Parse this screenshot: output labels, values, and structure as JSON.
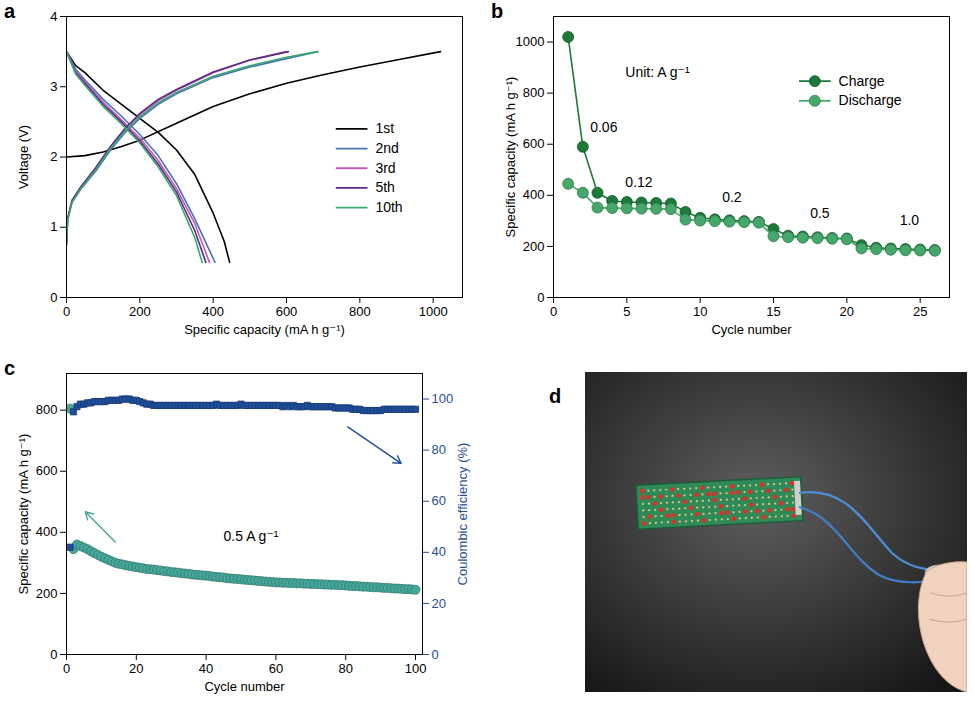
{
  "chart_data": [
    {
      "panel": "a",
      "type": "line",
      "xlabel": "Specific capacity (mA h g⁻¹)",
      "ylabel": "Voltage (V)",
      "xlim": [
        0,
        1080
      ],
      "xticks": [
        0,
        200,
        400,
        600,
        800,
        1000
      ],
      "ylim": [
        0,
        4
      ],
      "yticks": [
        0,
        1,
        2,
        3,
        4
      ],
      "legend": "lower right",
      "series": [
        {
          "name": "1st",
          "color": "#000000",
          "x": [
            0,
            25,
            50,
            100,
            150,
            200,
            250,
            300,
            350,
            400,
            430,
            445,
            null,
            0,
            50,
            100,
            150,
            200,
            300,
            400,
            500,
            600,
            700,
            800,
            900,
            1020
          ],
          "values": [
            3.5,
            3.3,
            3.2,
            2.95,
            2.75,
            2.55,
            2.35,
            2.1,
            1.75,
            1.2,
            0.8,
            0.5,
            null,
            2.0,
            2.02,
            2.07,
            2.15,
            2.24,
            2.48,
            2.72,
            2.9,
            3.05,
            3.17,
            3.28,
            3.38,
            3.5
          ]
        },
        {
          "name": "2nd",
          "color": "#4a72b8",
          "x": [
            0,
            25,
            50,
            100,
            150,
            200,
            250,
            300,
            350,
            405,
            null,
            0,
            3,
            15,
            40,
            80,
            120,
            160,
            200,
            250,
            300,
            400,
            500,
            600,
            685
          ],
          "values": [
            3.5,
            3.25,
            3.1,
            2.82,
            2.58,
            2.32,
            2.02,
            1.62,
            1.12,
            0.5,
            null,
            0.75,
            1.1,
            1.35,
            1.55,
            1.8,
            2.1,
            2.35,
            2.55,
            2.75,
            2.9,
            3.13,
            3.28,
            3.4,
            3.5
          ]
        },
        {
          "name": "3rd",
          "color": "#c25bb4",
          "x": [
            0,
            25,
            50,
            100,
            150,
            200,
            250,
            300,
            350,
            390,
            null,
            0,
            3,
            15,
            40,
            80,
            120,
            160,
            200,
            250,
            300,
            400,
            500,
            600
          ],
          "values": [
            3.5,
            3.22,
            3.07,
            2.78,
            2.53,
            2.27,
            1.95,
            1.55,
            1.05,
            0.5,
            null,
            0.75,
            1.12,
            1.38,
            1.58,
            1.84,
            2.14,
            2.4,
            2.6,
            2.8,
            2.95,
            3.2,
            3.38,
            3.5
          ]
        },
        {
          "name": "5th",
          "color": "#5b2a86",
          "x": [
            0,
            25,
            50,
            100,
            150,
            200,
            250,
            300,
            350,
            380,
            null,
            0,
            3,
            15,
            40,
            80,
            120,
            160,
            200,
            250,
            300,
            400,
            500,
            605
          ],
          "values": [
            3.5,
            3.2,
            3.05,
            2.75,
            2.5,
            2.23,
            1.9,
            1.5,
            0.95,
            0.5,
            null,
            0.75,
            1.12,
            1.38,
            1.58,
            1.85,
            2.15,
            2.41,
            2.62,
            2.82,
            2.96,
            3.21,
            3.38,
            3.5
          ]
        },
        {
          "name": "10th",
          "color": "#3aa86b",
          "x": [
            0,
            25,
            50,
            100,
            150,
            200,
            250,
            300,
            350,
            370,
            null,
            0,
            3,
            15,
            40,
            80,
            120,
            160,
            200,
            250,
            300,
            400,
            500,
            600,
            685
          ],
          "values": [
            3.5,
            3.18,
            3.02,
            2.72,
            2.47,
            2.2,
            1.86,
            1.45,
            0.85,
            0.5,
            null,
            0.75,
            1.1,
            1.36,
            1.56,
            1.82,
            2.12,
            2.37,
            2.57,
            2.77,
            2.92,
            3.15,
            3.3,
            3.42,
            3.5
          ]
        }
      ]
    },
    {
      "panel": "b",
      "type": "line",
      "xlabel": "Cycle number",
      "ylabel": "Specific capacity (mA h g⁻¹)",
      "xlim": [
        0,
        27
      ],
      "xticks": [
        0,
        5,
        10,
        15,
        20,
        25
      ],
      "ylim": [
        0,
        1100
      ],
      "yticks": [
        0,
        200,
        400,
        600,
        800,
        1000
      ],
      "legend": "upper right",
      "x": [
        1,
        2,
        3,
        4,
        5,
        6,
        7,
        8,
        9,
        10,
        11,
        12,
        13,
        14,
        15,
        16,
        17,
        18,
        19,
        20,
        21,
        22,
        23,
        24,
        25,
        26
      ],
      "series": [
        {
          "name": "Charge",
          "color": "#1b7a3a",
          "marker": "circle",
          "line_style": "solid",
          "values": [
            1020,
            590,
            410,
            378,
            374,
            372,
            370,
            368,
            335,
            312,
            306,
            302,
            299,
            296,
            268,
            242,
            239,
            236,
            233,
            231,
            205,
            195,
            192,
            190,
            188,
            186
          ]
        },
        {
          "name": "Discharge",
          "color": "#45a86a",
          "marker": "circle",
          "line_style": "solid",
          "values": [
            445,
            410,
            352,
            350,
            349,
            348,
            347,
            346,
            305,
            301,
            299,
            297,
            295,
            293,
            240,
            236,
            234,
            232,
            230,
            228,
            192,
            189,
            187,
            185,
            184,
            183
          ]
        }
      ],
      "annotations": [
        {
          "text": "Unit: A g⁻¹",
          "x": 4.9,
          "y": 880
        },
        {
          "text": "0.06",
          "x": 2.5,
          "y": 665
        },
        {
          "text": "0.12",
          "x": 4.9,
          "y": 450
        },
        {
          "text": "0.2",
          "x": 11.5,
          "y": 390
        },
        {
          "text": "0.5",
          "x": 17.5,
          "y": 330
        },
        {
          "text": "1.0",
          "x": 23.6,
          "y": 300
        }
      ]
    },
    {
      "panel": "c",
      "type": "scatter",
      "xlabel": "Cycle number",
      "ylabel": "Specific capacity (mA h g⁻¹)",
      "y2label": "Coulombic efficiency (%)",
      "xlim": [
        0,
        102
      ],
      "xticks": [
        0,
        20,
        40,
        60,
        80,
        100
      ],
      "ylim": [
        0,
        920
      ],
      "yticks": [
        0,
        200,
        400,
        600,
        800
      ],
      "y2lim": [
        0,
        110
      ],
      "y2ticks": [
        0,
        20,
        40,
        60,
        80,
        100
      ],
      "x": [
        1,
        2,
        3,
        4,
        5,
        6,
        7,
        8,
        9,
        10,
        11,
        12,
        13,
        14,
        15,
        16,
        17,
        18,
        19,
        20,
        21,
        22,
        23,
        24,
        25,
        26,
        27,
        28,
        29,
        30,
        31,
        32,
        33,
        34,
        35,
        36,
        37,
        38,
        39,
        40,
        41,
        42,
        43,
        44,
        45,
        46,
        47,
        48,
        49,
        50,
        51,
        52,
        53,
        54,
        55,
        56,
        57,
        58,
        59,
        60,
        61,
        62,
        63,
        64,
        65,
        66,
        67,
        68,
        69,
        70,
        71,
        72,
        73,
        74,
        75,
        76,
        77,
        78,
        79,
        80,
        81,
        82,
        83,
        84,
        85,
        86,
        87,
        88,
        89,
        90,
        91,
        92,
        93,
        94,
        95,
        96,
        97,
        98,
        99,
        100
      ],
      "series": [
        {
          "color": "#45a89b",
          "marker": "circle",
          "values": [
            805,
            345,
            360,
            355,
            350,
            345,
            338,
            332,
            326,
            320,
            315,
            310,
            305,
            300,
            297,
            295,
            292,
            290,
            288,
            286,
            284,
            282,
            280,
            279,
            278,
            276,
            275,
            273,
            272,
            270,
            269,
            268,
            266,
            265,
            264,
            262,
            261,
            260,
            259,
            258,
            257,
            255,
            254,
            253,
            252,
            250,
            249,
            248,
            247,
            246,
            245,
            244,
            243,
            242,
            241,
            240,
            239,
            238,
            237,
            236,
            236,
            235,
            235,
            234,
            234,
            233,
            233,
            232,
            232,
            231,
            231,
            230,
            230,
            229,
            229,
            228,
            228,
            227,
            227,
            226,
            225,
            224,
            224,
            223,
            222,
            222,
            221,
            220,
            220,
            219,
            218,
            218,
            217,
            216,
            216,
            215,
            214,
            214,
            213,
            212
          ]
        },
        {
          "color": "#1f4f9c",
          "marker": "square",
          "axis": "y2",
          "values": [
            42,
            95,
            97,
            98,
            98,
            98.5,
            98.5,
            99,
            99,
            99,
            99,
            99.5,
            99.5,
            99.5,
            99.5,
            100,
            100,
            100,
            99.5,
            99.5,
            99,
            98.5,
            98,
            98,
            97.5,
            97.5,
            97.5,
            97.5,
            97.5,
            97.5,
            97.5,
            97.5,
            97.5,
            97.5,
            97.5,
            97.5,
            97.5,
            97.5,
            97.5,
            97.5,
            97.5,
            97.5,
            98,
            97.5,
            97.5,
            97.5,
            97.5,
            97.5,
            97.5,
            98,
            97.5,
            97.5,
            97.5,
            97.5,
            97.5,
            97.5,
            97.5,
            97.5,
            97.5,
            97.5,
            97.5,
            97,
            97.5,
            97,
            97.5,
            97,
            97,
            97,
            97.5,
            97,
            97,
            97,
            97,
            97,
            97,
            97,
            96.5,
            96.5,
            96.5,
            96.5,
            96.5,
            96,
            96,
            96,
            95.5,
            95.5,
            95.5,
            95.5,
            95.5,
            95.5,
            96,
            96,
            96,
            96,
            96,
            96,
            96,
            96,
            96,
            96
          ]
        }
      ],
      "annotations": [
        {
          "text": "0.5 A g⁻¹",
          "x": 45,
          "y": 385
        }
      ]
    },
    {
      "panel": "d",
      "type": "image"
    }
  ]
}
